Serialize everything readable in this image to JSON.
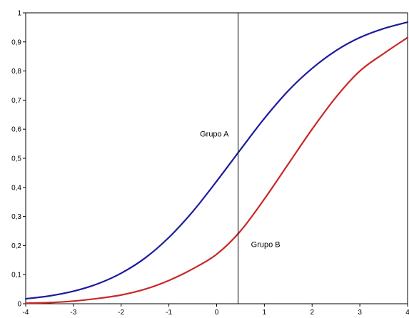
{
  "chart_data": {
    "type": "line",
    "title": "",
    "xlabel": "",
    "ylabel": "",
    "xlim": [
      -4,
      4
    ],
    "ylim": [
      0,
      1
    ],
    "x_ticks": [
      -4,
      -3,
      -2,
      -1,
      0,
      1,
      2,
      3,
      4
    ],
    "x_tick_labels": [
      "-4",
      "-3",
      "-2",
      "-1",
      "0",
      "1",
      "2",
      "3",
      "4"
    ],
    "y_ticks": [
      0,
      0.1,
      0.2,
      0.3,
      0.4,
      0.5,
      0.6,
      0.7,
      0.8,
      0.9,
      1
    ],
    "y_tick_labels": [
      "0",
      "0,1",
      "0,2",
      "0,3",
      "0,4",
      "0,5",
      "0,6",
      "0,7",
      "0,8",
      "0,9",
      "1"
    ],
    "grid": false,
    "x": [
      -4,
      -3.5,
      -3,
      -2.5,
      -2,
      -1.5,
      -1,
      -0.5,
      0,
      0.5,
      1,
      1.5,
      2,
      2.5,
      3,
      3.5,
      4
    ],
    "series": [
      {
        "color": "#1c1c9c",
        "values": [
          0.017,
          0.027,
          0.043,
          0.068,
          0.105,
          0.157,
          0.228,
          0.317,
          0.421,
          0.53,
          0.637,
          0.732,
          0.809,
          0.87,
          0.915,
          0.946,
          0.968
        ]
      },
      {
        "color": "#c82828",
        "values": [
          0.002,
          0.004,
          0.009,
          0.018,
          0.03,
          0.05,
          0.08,
          0.12,
          0.17,
          0.25,
          0.36,
          0.48,
          0.6,
          0.71,
          0.8,
          0.86,
          0.915
        ]
      }
    ],
    "vertical_line": {
      "x": 0.45,
      "color": "#000000"
    },
    "annotations": [
      {
        "text": "Grupo A",
        "x": -0.35,
        "y": 0.575
      },
      {
        "text": "Grupo B",
        "x": 0.72,
        "y": 0.195
      }
    ]
  }
}
